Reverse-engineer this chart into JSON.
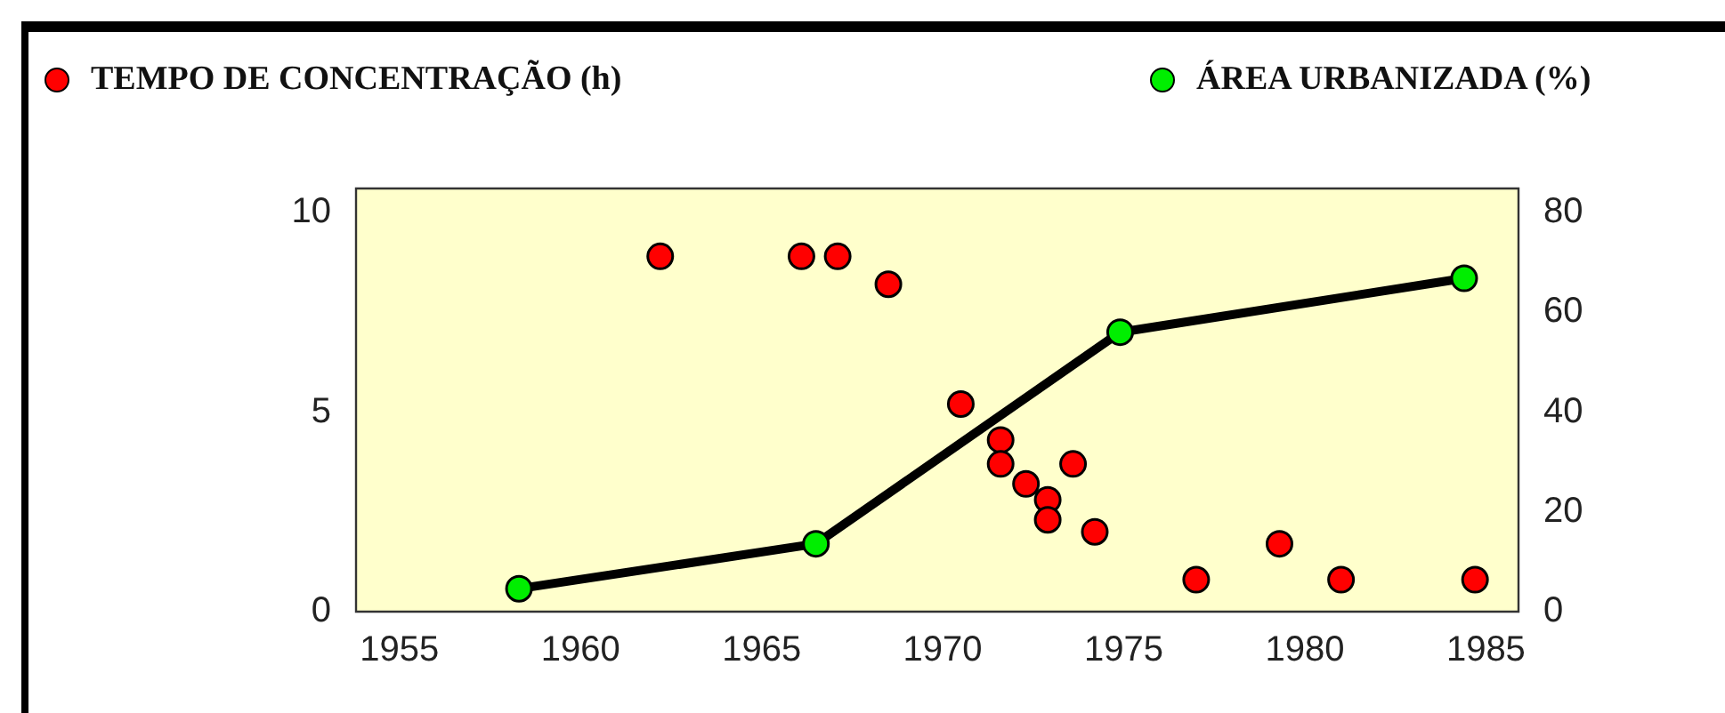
{
  "chart_data": {
    "type": "scatter",
    "legend": "top",
    "grid": false,
    "marker": "circle",
    "xlim": [
      1953.8,
      1985.9
    ],
    "xticks": [
      1955,
      1960,
      1965,
      1970,
      1975,
      1980,
      1985
    ],
    "ylim": [
      0,
      10.6
    ],
    "yticks": [
      0,
      5,
      10
    ],
    "y2lim": [
      0,
      84.8
    ],
    "y2ticks": [
      0,
      20,
      40,
      60,
      80
    ],
    "series": [
      {
        "name": "TEMPO DE CONCENTRAÇÃO (h)",
        "type": "scatter",
        "color": "#ff0000",
        "x": [
          1962.2,
          1966.1,
          1967.1,
          1968.5,
          1970.5,
          1971.6,
          1971.6,
          1972.3,
          1972.9,
          1972.9,
          1973.6,
          1974.2,
          1977.0,
          1979.3,
          1981.0,
          1984.7
        ],
        "values": [
          8.9,
          8.9,
          8.9,
          8.2,
          5.2,
          4.3,
          3.7,
          3.2,
          2.8,
          2.3,
          3.7,
          2.0,
          0.8,
          1.7,
          0.8,
          0.8
        ]
      },
      {
        "name": "ÁREA URBANIZADA (%)",
        "type": "line",
        "axis": "y2",
        "color": "#00ee00",
        "x": [
          1958.3,
          1966.5,
          1974.9,
          1984.4
        ],
        "values": [
          4.6,
          13.6,
          56,
          66.8
        ]
      }
    ]
  }
}
